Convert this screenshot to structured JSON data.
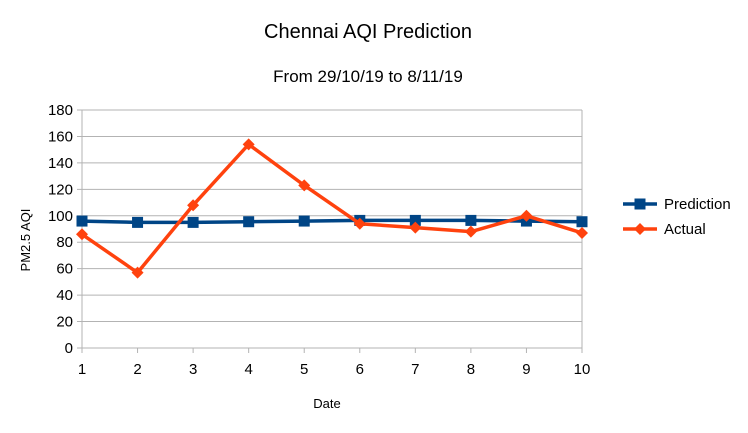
{
  "chart_data": {
    "type": "line",
    "title": "Chennai AQI Prediction",
    "subtitle": "From 29/10/19 to 8/11/19",
    "xlabel": "Date",
    "ylabel": "PM2.5 AQI",
    "x": [
      1,
      2,
      3,
      4,
      5,
      6,
      7,
      8,
      9,
      10
    ],
    "ylim": [
      0,
      180
    ],
    "yticks": [
      0,
      20,
      40,
      60,
      80,
      100,
      120,
      140,
      160,
      180
    ],
    "grid": true,
    "legend_position": "right",
    "series": [
      {
        "name": "Prediction",
        "color": "#004586",
        "marker": "square",
        "values": [
          96,
          95,
          95,
          95.5,
          96,
          96.5,
          96.5,
          96.5,
          96,
          95.5
        ]
      },
      {
        "name": "Actual",
        "color": "#ff420e",
        "marker": "diamond",
        "values": [
          86,
          57,
          108,
          154,
          123,
          94,
          91,
          88,
          100,
          87
        ]
      }
    ]
  }
}
